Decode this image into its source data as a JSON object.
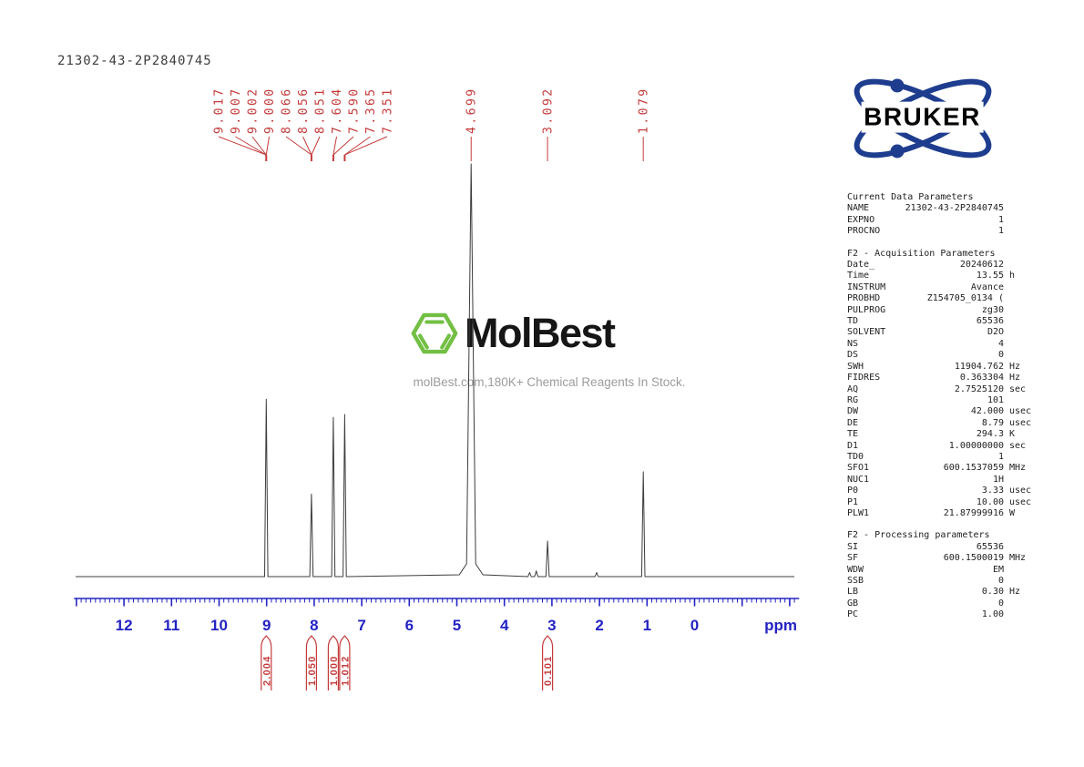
{
  "title": "21302-43-2P2840745",
  "watermark": {
    "brand": "MolBest",
    "tagline": "molBest.com,180K+ Chemical Reagents In Stock.",
    "hexagon_color": "#72bf44"
  },
  "bruker": {
    "text": "BRUKER",
    "ellipse_color": "#1e3d8f",
    "text_color": "#050505"
  },
  "colors": {
    "annotation_red": "#c53b3b",
    "axis_blue": "#2323c4",
    "trace": "#3c3c3c"
  },
  "chart_data": {
    "type": "line",
    "description": "1H NMR spectrum",
    "xlabel": "ppm",
    "x_axis": {
      "min": -2.2,
      "max": 13.05,
      "direction": "reversed",
      "major_ticks": [
        12,
        11,
        10,
        9,
        8,
        7,
        6,
        5,
        4,
        3,
        2,
        1,
        0
      ],
      "minor_step": 0.1
    },
    "peak_label_groups": [
      {
        "labels": [
          "9.017",
          "9.007",
          "9.002",
          "9.000"
        ],
        "peak_ppm": 9.008
      },
      {
        "labels": [
          "8.066",
          "8.056",
          "8.051"
        ],
        "peak_ppm": 8.057
      },
      {
        "labels": [
          "7.604",
          "7.590"
        ],
        "peak_ppm": 7.597
      },
      {
        "labels": [
          "7.365",
          "7.351"
        ],
        "peak_ppm": 7.358
      },
      {
        "labels": [
          "4.699"
        ],
        "peak_ppm": 4.699
      },
      {
        "labels": [
          "3.092"
        ],
        "peak_ppm": 3.092
      },
      {
        "labels": [
          "1.079"
        ],
        "peak_ppm": 1.079
      }
    ],
    "peaks": [
      {
        "ppm": 9.008,
        "intensity": 0.43
      },
      {
        "ppm": 8.057,
        "intensity": 0.2
      },
      {
        "ppm": 7.597,
        "intensity": 0.386
      },
      {
        "ppm": 7.358,
        "intensity": 0.393
      },
      {
        "ppm": 4.699,
        "intensity": 1.0,
        "wide": true
      },
      {
        "ppm": 3.47,
        "intensity": 0.01
      },
      {
        "ppm": 3.33,
        "intensity": 0.014
      },
      {
        "ppm": 3.092,
        "intensity": 0.086
      },
      {
        "ppm": 2.06,
        "intensity": 0.01
      },
      {
        "ppm": 1.079,
        "intensity": 0.254
      }
    ],
    "integrals": [
      {
        "value": "2.004",
        "ppm": 9.008
      },
      {
        "value": "1.050",
        "ppm": 8.057
      },
      {
        "value": "1.000",
        "ppm": 7.597
      },
      {
        "value": "1.012",
        "ppm": 7.358
      },
      {
        "value": "0.101",
        "ppm": 3.092
      }
    ]
  },
  "parameters": {
    "sections": [
      {
        "title": "Current Data Parameters",
        "rows": [
          [
            "NAME",
            "21302-43-2P2840745",
            ""
          ],
          [
            "EXPNO",
            "1",
            ""
          ],
          [
            "PROCNO",
            "1",
            ""
          ]
        ]
      },
      {
        "title": "F2 - Acquisition Parameters",
        "rows": [
          [
            "Date_",
            "20240612",
            ""
          ],
          [
            "Time",
            "13.55",
            "h"
          ],
          [
            "INSTRUM",
            "Avance",
            ""
          ],
          [
            "PROBHD",
            "Z154705_0134 (",
            ""
          ],
          [
            "PULPROG",
            "zg30",
            ""
          ],
          [
            "TD",
            "65536",
            ""
          ],
          [
            "SOLVENT",
            "D2O",
            ""
          ],
          [
            "NS",
            "4",
            ""
          ],
          [
            "DS",
            "0",
            ""
          ],
          [
            "SWH",
            "11904.762",
            "Hz"
          ],
          [
            "FIDRES",
            "0.363304",
            "Hz"
          ],
          [
            "AQ",
            "2.7525120",
            "sec"
          ],
          [
            "RG",
            "101",
            ""
          ],
          [
            "DW",
            "42.000",
            "usec"
          ],
          [
            "DE",
            "8.79",
            "usec"
          ],
          [
            "TE",
            "294.3",
            "K"
          ],
          [
            "D1",
            "1.00000000",
            "sec"
          ],
          [
            "TD0",
            "1",
            ""
          ],
          [
            "SFO1",
            "600.1537059",
            "MHz"
          ],
          [
            "NUC1",
            "1H",
            ""
          ],
          [
            "P0",
            "3.33",
            "usec"
          ],
          [
            "P1",
            "10.00",
            "usec"
          ],
          [
            "PLW1",
            "21.87999916",
            "W"
          ]
        ]
      },
      {
        "title": "F2 - Processing parameters",
        "rows": [
          [
            "SI",
            "65536",
            ""
          ],
          [
            "SF",
            "600.1500019",
            "MHz"
          ],
          [
            "WDW",
            "EM",
            ""
          ],
          [
            "SSB",
            "0",
            ""
          ],
          [
            "LB",
            "0.30",
            "Hz"
          ],
          [
            "GB",
            "0",
            ""
          ],
          [
            "PC",
            "1.00",
            ""
          ]
        ]
      }
    ]
  }
}
